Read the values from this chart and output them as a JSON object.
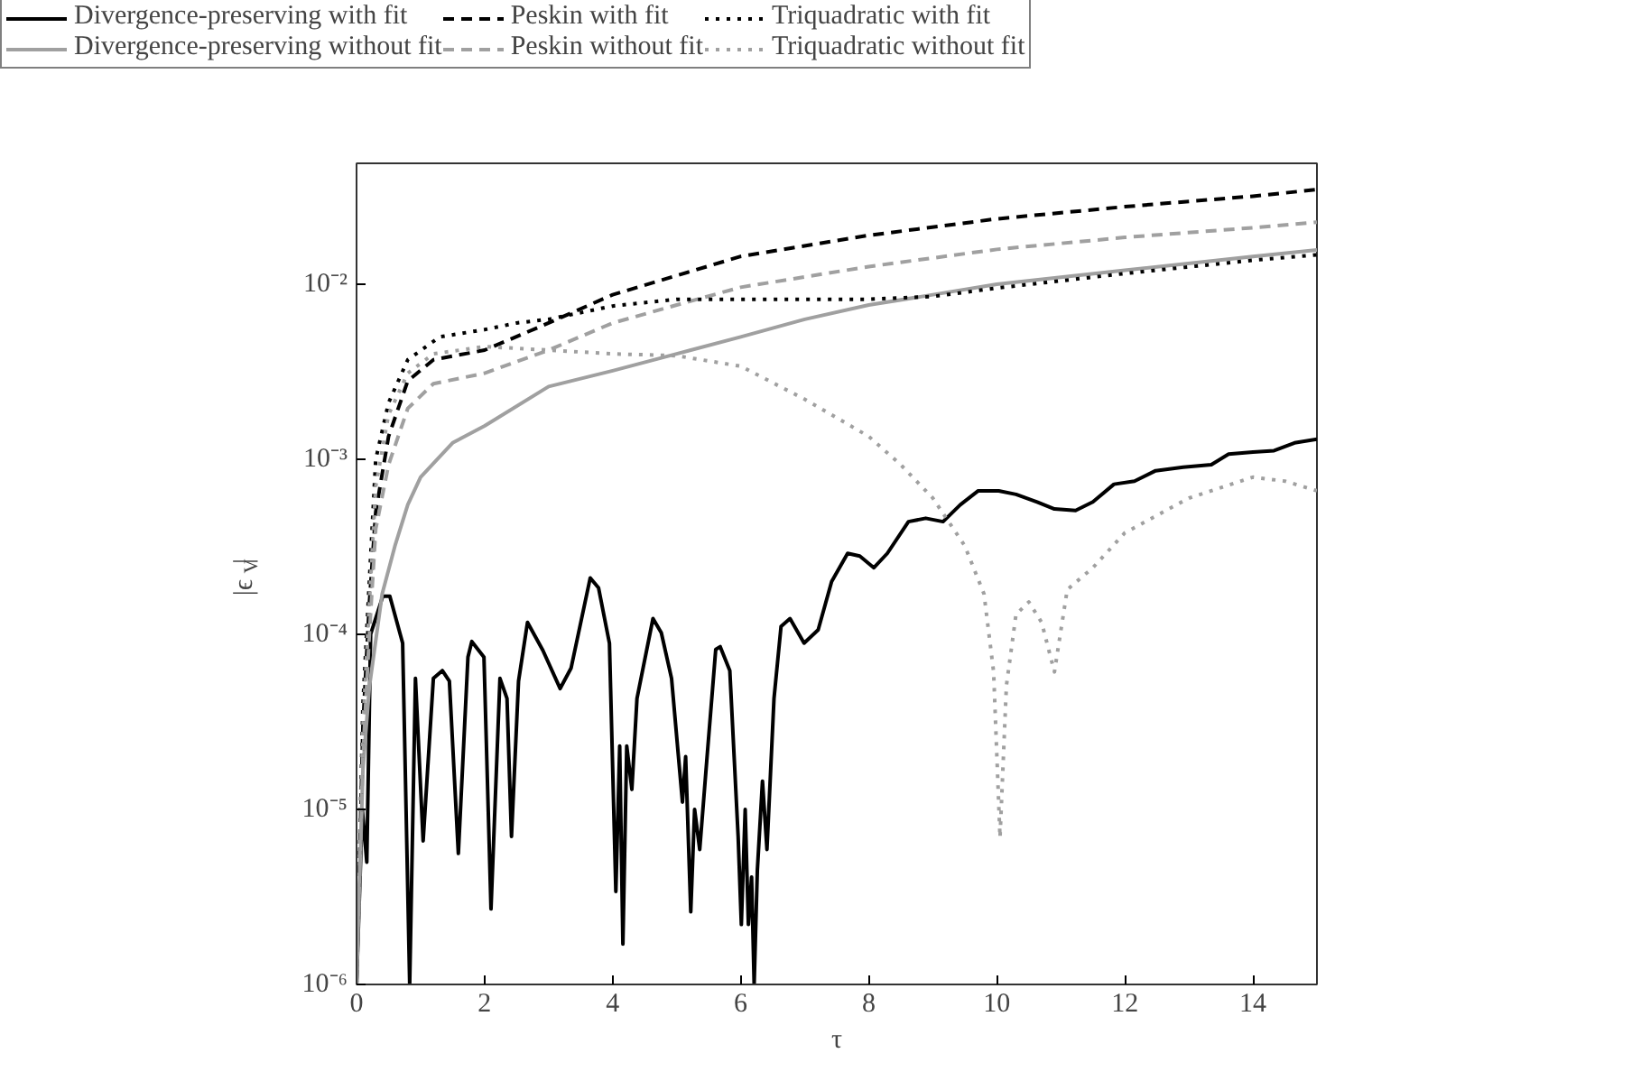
{
  "chart_data": {
    "type": "line",
    "xlabel": "τ",
    "ylabel": "|ϵ$_{V}$|",
    "log": "y",
    "xlim": [
      0,
      15
    ],
    "ylim": [
      1e-06,
      0.049
    ],
    "xticks": [
      0,
      2,
      4,
      6,
      8,
      10,
      12,
      14
    ],
    "yticks": [
      {
        "value": 1e-06,
        "label": "10⁻⁶"
      },
      {
        "value": 1e-05,
        "label": "10⁻⁵"
      },
      {
        "value": 0.0001,
        "label": "10⁻⁴"
      },
      {
        "value": 0.001,
        "label": "10⁻³"
      },
      {
        "value": 0.01,
        "label": "10⁻²"
      }
    ],
    "grid": false,
    "legend": "top",
    "marker": "none",
    "series": [
      {
        "name": "Divergence-preserving with fit",
        "color": "#000000",
        "line_style": "solid",
        "x": [
          0,
          0.09,
          0.16,
          0.22,
          0.41,
          0.52,
          0.72,
          0.83,
          0.92,
          1.04,
          1.2,
          1.34,
          1.45,
          1.59,
          1.74,
          1.8,
          1.99,
          2.1,
          2.24,
          2.35,
          2.42,
          2.53,
          2.67,
          2.91,
          3.18,
          3.35,
          3.65,
          3.78,
          3.95,
          4.05,
          4.11,
          4.16,
          4.22,
          4.3,
          4.38,
          4.63,
          4.76,
          4.92,
          5.09,
          5.14,
          5.22,
          5.28,
          5.36,
          5.47,
          5.61,
          5.68,
          5.83,
          5.96,
          6.01,
          6.07,
          6.12,
          6.17,
          6.21,
          6.26,
          6.34,
          6.41,
          6.52,
          6.63,
          6.77,
          6.99,
          7.21,
          7.42,
          7.67,
          7.86,
          8.08,
          8.29,
          8.62,
          8.89,
          9.16,
          9.43,
          9.71,
          10.03,
          10.3,
          10.63,
          10.9,
          11.23,
          11.5,
          11.83,
          12.15,
          12.48,
          12.91,
          13.35,
          13.62,
          14,
          14.33,
          14.65,
          15
        ],
        "values": [
          1e-06,
          1e-05,
          5e-06,
          0.0001,
          0.000165,
          0.000165,
          8.9e-05,
          1e-06,
          5.6e-05,
          6.6e-06,
          5.6e-05,
          6.2e-05,
          5.4e-05,
          5.6e-06,
          7.4e-05,
          9.1e-05,
          7.4e-05,
          2.7e-06,
          5.6e-05,
          4.3e-05,
          7e-06,
          5.4e-05,
          0.000117,
          8.1e-05,
          4.9e-05,
          6.4e-05,
          0.00021,
          0.000184,
          8.9e-05,
          3.4e-06,
          2.3e-05,
          1.7e-06,
          2.3e-05,
          1.3e-05,
          4.3e-05,
          0.000123,
          0.000102,
          5.6e-05,
          1.1e-05,
          2e-05,
          2.6e-06,
          1e-05,
          5.9e-06,
          1.9e-05,
          8.2e-05,
          8.5e-05,
          6.2e-05,
          7e-06,
          2.2e-06,
          1e-05,
          2.2e-06,
          4.1e-06,
          1e-06,
          4.5e-06,
          1.45e-05,
          5.9e-06,
          4.3e-05,
          0.000111,
          0.000123,
          8.9e-05,
          0.000106,
          0.0002,
          0.00029,
          0.00028,
          0.00024,
          0.00029,
          0.00044,
          0.00046,
          0.00044,
          0.00055,
          0.00066,
          0.00066,
          0.00063,
          0.00057,
          0.00052,
          0.00051,
          0.00057,
          0.00072,
          0.00075,
          0.00086,
          0.0009,
          0.00093,
          0.00107,
          0.0011,
          0.00112,
          0.00124,
          0.0013
        ]
      },
      {
        "name": "Divergence-preserving without fit",
        "color": "#a0a0a0",
        "line_style": "solid",
        "x": [
          0,
          0.1,
          0.2,
          0.4,
          0.6,
          0.8,
          1,
          1.5,
          2,
          3,
          4,
          5,
          6,
          7,
          8,
          9,
          10,
          12,
          14,
          15
        ],
        "values": [
          1e-06,
          1.7e-05,
          5e-05,
          0.00017,
          0.00032,
          0.00055,
          0.00079,
          0.00124,
          0.00155,
          0.0026,
          0.0032,
          0.004,
          0.005,
          0.0063,
          0.0076,
          0.0087,
          0.01,
          0.012,
          0.0144,
          0.0157
        ]
      },
      {
        "name": "Peskin with fit",
        "color": "#000000",
        "line_style": "dashed",
        "x": [
          0,
          0.1,
          0.2,
          0.3,
          0.5,
          0.8,
          1.2,
          2,
          3,
          4,
          6,
          8,
          10,
          12,
          14,
          15
        ],
        "values": [
          1e-06,
          3e-05,
          0.00015,
          0.0005,
          0.00135,
          0.0028,
          0.0037,
          0.0042,
          0.006,
          0.0087,
          0.0144,
          0.019,
          0.0236,
          0.0277,
          0.0318,
          0.0347
        ]
      },
      {
        "name": "Peskin without fit",
        "color": "#a0a0a0",
        "line_style": "dashed",
        "x": [
          0,
          0.1,
          0.2,
          0.3,
          0.5,
          0.8,
          1.2,
          2,
          3,
          4,
          5,
          6,
          8,
          10,
          12,
          14,
          15
        ],
        "values": [
          1e-06,
          2e-05,
          0.0001,
          0.0004,
          0.00093,
          0.00195,
          0.0027,
          0.0031,
          0.0042,
          0.006,
          0.0076,
          0.0096,
          0.0126,
          0.0158,
          0.0185,
          0.021,
          0.0226
        ]
      },
      {
        "name": "Triquadratic with fit",
        "color": "#000000",
        "line_style": "dotted",
        "x": [
          0,
          0.1,
          0.2,
          0.3,
          0.5,
          0.8,
          1.3,
          2,
          2.5,
          3,
          4,
          5,
          6,
          8,
          9,
          10,
          12,
          14,
          15
        ],
        "values": [
          1e-06,
          4e-05,
          0.0002,
          0.001,
          0.0021,
          0.0037,
          0.005,
          0.0055,
          0.006,
          0.0063,
          0.0075,
          0.0082,
          0.0082,
          0.0082,
          0.0085,
          0.0095,
          0.0115,
          0.0137,
          0.0147
        ]
      },
      {
        "name": "Triquadratic without fit",
        "color": "#a0a0a0",
        "line_style": "dotted",
        "x": [
          0,
          0.1,
          0.2,
          0.3,
          0.5,
          0.8,
          1.2,
          2,
          2.5,
          3,
          4,
          5,
          6,
          7,
          8,
          8.5,
          9,
          9.5,
          9.8,
          9.95,
          10.05,
          10.15,
          10.3,
          10.5,
          10.7,
          10.9,
          11.1,
          11.5,
          12,
          13,
          14,
          14.5,
          15
        ],
        "values": [
          1e-06,
          3e-05,
          0.00015,
          0.0007,
          0.0018,
          0.0031,
          0.004,
          0.0044,
          0.0043,
          0.0042,
          0.004,
          0.0039,
          0.0034,
          0.0022,
          0.00135,
          0.00093,
          0.0006,
          0.00032,
          0.00017,
          6.1e-05,
          6.9e-06,
          5.1e-05,
          0.00013,
          0.000153,
          0.000117,
          6.1e-05,
          0.00018,
          0.00024,
          0.00038,
          0.0006,
          0.00079,
          0.00075,
          0.00066
        ]
      }
    ]
  }
}
